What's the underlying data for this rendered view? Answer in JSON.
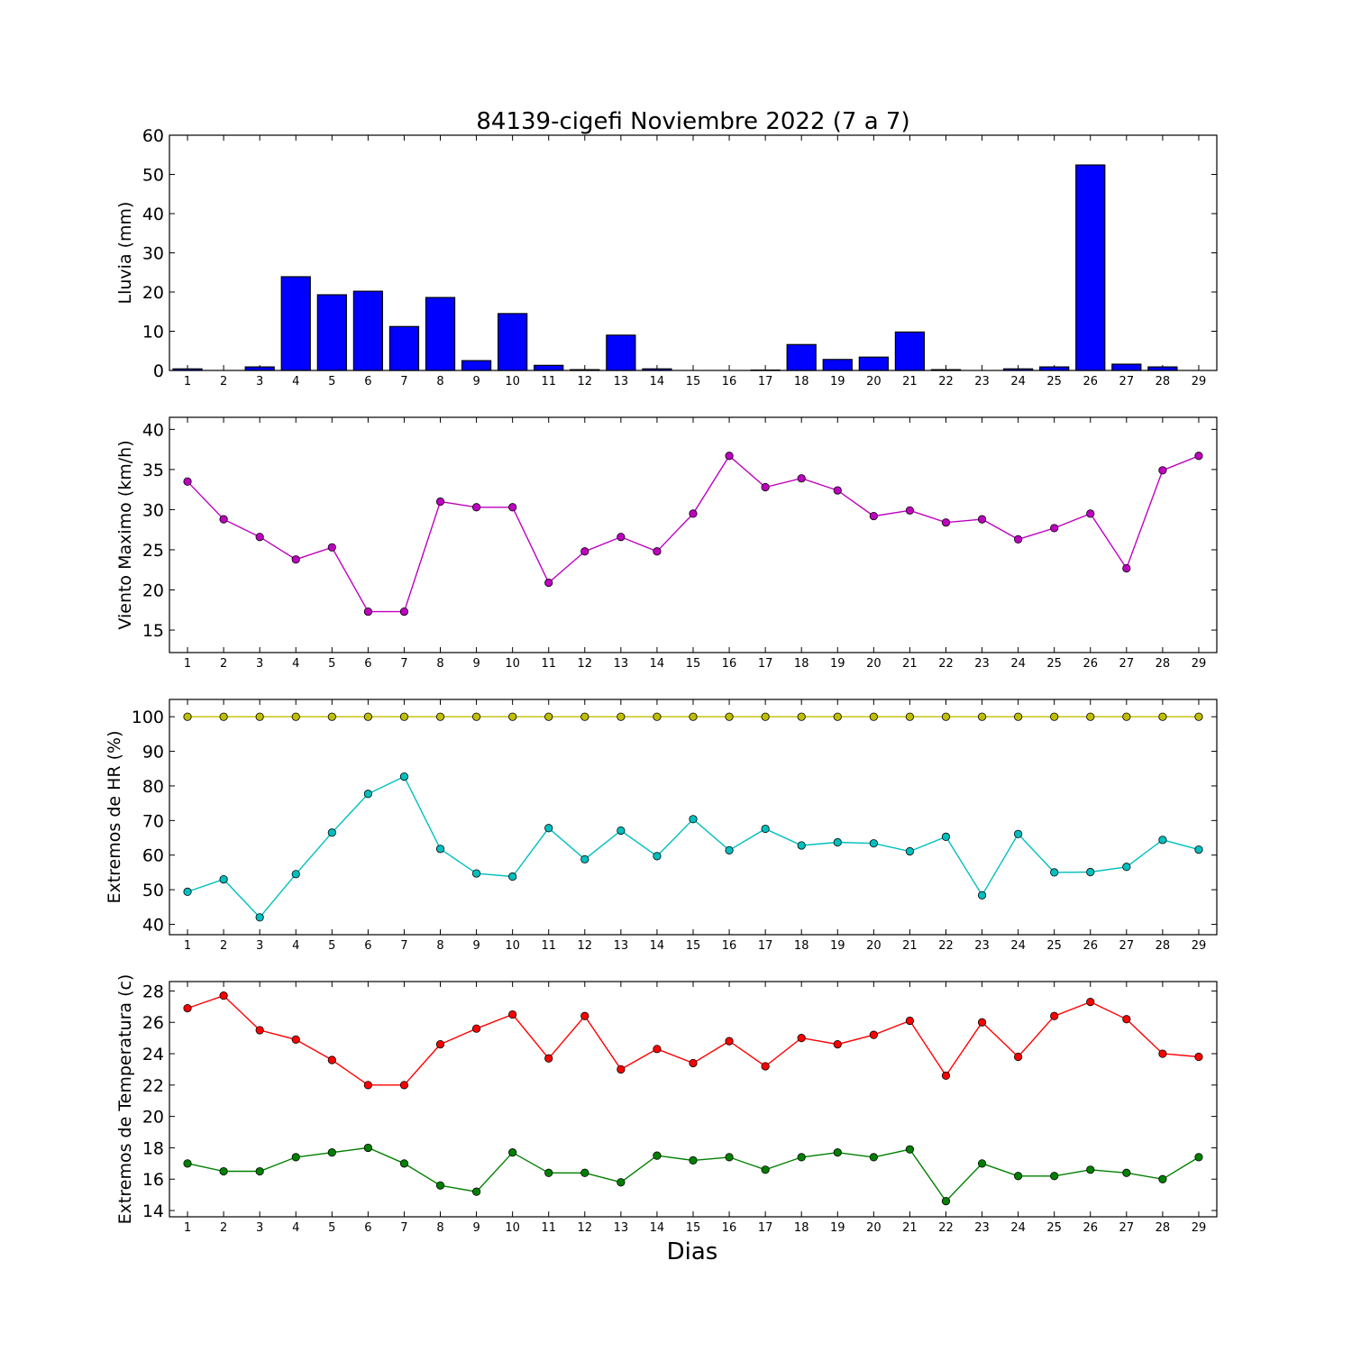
{
  "figure": {
    "title": "84139-cigefi Noviembre 2022  (7 a 7)",
    "xlabel": "Dias"
  },
  "chart_data": [
    {
      "type": "bar",
      "ylabel": "Lluvia (mm)",
      "x": [
        1,
        2,
        3,
        4,
        5,
        6,
        7,
        8,
        9,
        10,
        11,
        12,
        13,
        14,
        15,
        16,
        17,
        18,
        19,
        20,
        21,
        22,
        23,
        24,
        25,
        26,
        27,
        28,
        29
      ],
      "ylim": [
        0,
        60
      ],
      "yticks": [
        0,
        10,
        20,
        30,
        40,
        50,
        60
      ],
      "color": "#0000ff",
      "values": [
        0.4,
        0,
        0.9,
        23.9,
        19.3,
        20.2,
        11.2,
        18.6,
        2.5,
        14.5,
        1.3,
        0.2,
        9,
        0.4,
        0,
        0,
        0.1,
        6.6,
        2.8,
        3.4,
        9.8,
        0.2,
        0,
        0.4,
        0.9,
        52.4,
        1.6,
        0.9,
        0
      ]
    },
    {
      "type": "line",
      "ylabel": "Viento Maximo (km/h)",
      "x": [
        1,
        2,
        3,
        4,
        5,
        6,
        7,
        8,
        9,
        10,
        11,
        12,
        13,
        14,
        15,
        16,
        17,
        18,
        19,
        20,
        21,
        22,
        23,
        24,
        25,
        26,
        27,
        28,
        29
      ],
      "ylim": [
        12.2,
        41.5
      ],
      "yticks": [
        15,
        20,
        25,
        30,
        35,
        40
      ],
      "series": [
        {
          "color": "#bf00bf",
          "values": [
            33.5,
            28.8,
            26.6,
            23.8,
            25.3,
            17.3,
            17.3,
            31,
            30.3,
            30.3,
            20.9,
            24.8,
            26.6,
            24.8,
            29.5,
            36.7,
            32.8,
            33.9,
            32.4,
            29.2,
            29.9,
            28.4,
            28.8,
            26.3,
            27.7,
            29.5,
            22.7,
            34.9,
            36.7
          ]
        }
      ]
    },
    {
      "type": "line",
      "ylabel": "Extremos de HR (%)",
      "x": [
        1,
        2,
        3,
        4,
        5,
        6,
        7,
        8,
        9,
        10,
        11,
        12,
        13,
        14,
        15,
        16,
        17,
        18,
        19,
        20,
        21,
        22,
        23,
        24,
        25,
        26,
        27,
        28,
        29
      ],
      "ylim": [
        37,
        105
      ],
      "yticks": [
        40,
        50,
        60,
        70,
        80,
        90,
        100
      ],
      "series": [
        {
          "color": "#bfbf00",
          "values": [
            100,
            100,
            100,
            100,
            100,
            100,
            100,
            100,
            100,
            100,
            100,
            100,
            100,
            100,
            100,
            100,
            100,
            100,
            100,
            100,
            100,
            100,
            100,
            100,
            100,
            100,
            100,
            100,
            100
          ]
        },
        {
          "color": "#00bfbf",
          "values": [
            49.4,
            53,
            42,
            54.5,
            66.5,
            77.7,
            82.7,
            61.8,
            54.7,
            53.8,
            67.8,
            58.8,
            67.1,
            59.7,
            70.4,
            61.4,
            67.6,
            62.8,
            63.7,
            63.4,
            61.1,
            65.3,
            48.4,
            66.1,
            55,
            55.1,
            56.6,
            64.4,
            61.6
          ]
        }
      ]
    },
    {
      "type": "line",
      "ylabel": "Extremos de Temperatura (c)",
      "x": [
        1,
        2,
        3,
        4,
        5,
        6,
        7,
        8,
        9,
        10,
        11,
        12,
        13,
        14,
        15,
        16,
        17,
        18,
        19,
        20,
        21,
        22,
        23,
        24,
        25,
        26,
        27,
        28,
        29
      ],
      "ylim": [
        13.6,
        28.6
      ],
      "yticks": [
        14,
        16,
        18,
        20,
        22,
        24,
        26,
        28
      ],
      "series": [
        {
          "color": "#ff0000",
          "values": [
            26.9,
            27.7,
            25.5,
            24.9,
            23.6,
            22,
            22,
            24.6,
            25.6,
            26.5,
            23.7,
            26.4,
            23,
            24.3,
            23.4,
            24.8,
            23.2,
            25,
            24.6,
            25.2,
            26.1,
            22.6,
            26,
            23.8,
            26.4,
            27.3,
            26.2,
            24,
            23.8
          ]
        },
        {
          "color": "#008000",
          "values": [
            17,
            16.5,
            16.5,
            17.4,
            17.7,
            18,
            17,
            15.6,
            15.2,
            17.7,
            16.4,
            16.4,
            15.8,
            17.5,
            17.2,
            17.4,
            16.6,
            17.4,
            17.7,
            17.4,
            17.9,
            14.6,
            17,
            16.2,
            16.2,
            16.6,
            16.4,
            16,
            17.4
          ]
        }
      ]
    }
  ]
}
